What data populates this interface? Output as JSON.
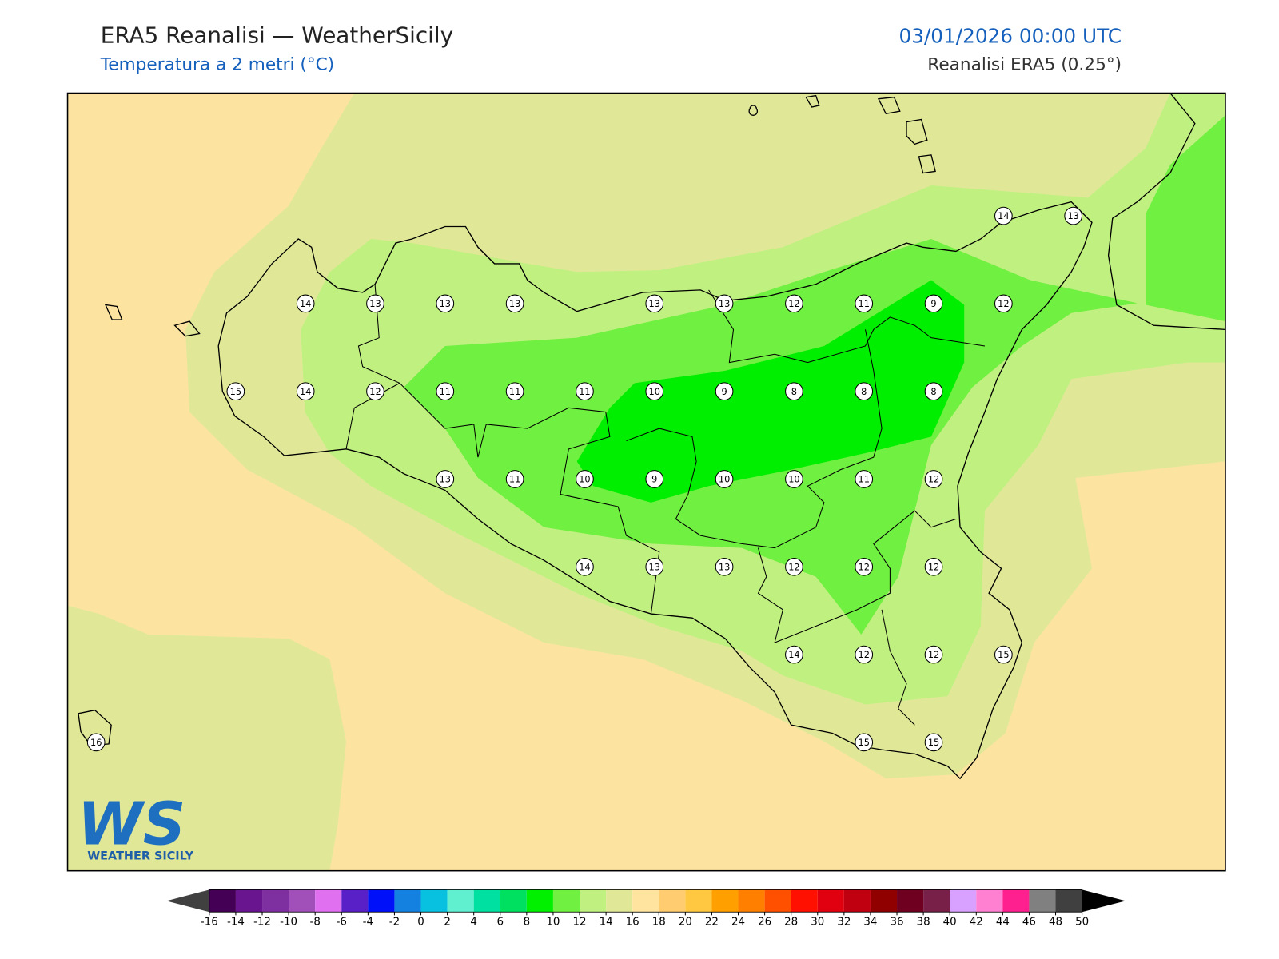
{
  "header": {
    "title": "ERA5 Reanalisi — WeatherSicily",
    "subtitle": "Temperatura a 2 metri (°C)",
    "datetime": "03/01/2026 00:00 UTC",
    "source": "Reanalisi ERA5 (0.25°)"
  },
  "stations": {
    "rows": [
      [
        null,
        null,
        null,
        null,
        null,
        null,
        null,
        null,
        null,
        null,
        null,
        null,
        null,
        14,
        13
      ],
      [
        null,
        null,
        null,
        14,
        13,
        13,
        13,
        null,
        13,
        13,
        12,
        11,
        9,
        12,
        null
      ],
      [
        null,
        null,
        15,
        14,
        12,
        11,
        11,
        11,
        10,
        9,
        8,
        8,
        8,
        null,
        null
      ],
      [
        null,
        null,
        null,
        null,
        null,
        13,
        11,
        10,
        9,
        10,
        10,
        11,
        12,
        null,
        null
      ],
      [
        null,
        null,
        null,
        null,
        null,
        null,
        null,
        14,
        13,
        13,
        12,
        12,
        12,
        null,
        null
      ],
      [
        null,
        null,
        null,
        null,
        null,
        null,
        null,
        null,
        null,
        null,
        14,
        12,
        12,
        15,
        null
      ],
      [
        16,
        null,
        null,
        null,
        null,
        null,
        null,
        null,
        null,
        null,
        null,
        15,
        15,
        null,
        null
      ]
    ]
  },
  "colorbar": {
    "ticks": [
      -16,
      -14,
      -12,
      -10,
      -8,
      -6,
      -4,
      -2,
      0,
      2,
      4,
      6,
      8,
      10,
      12,
      14,
      16,
      18,
      20,
      22,
      24,
      26,
      28,
      30,
      32,
      34,
      36,
      38,
      40,
      42,
      44,
      46,
      48,
      50
    ],
    "colors": [
      "#440055",
      "#6a1590",
      "#7e30a0",
      "#a050b8",
      "#e070f0",
      "#5a20c8",
      "#0010f8",
      "#1480e0",
      "#08c0e0",
      "#60f0d0",
      "#00e0a0",
      "#00e060",
      "#00f000",
      "#70f040",
      "#c0f080",
      "#e0e898",
      "#ffe4a0",
      "#ffcc70",
      "#ffc840",
      "#ffa000",
      "#ff8000",
      "#ff5000",
      "#ff1000",
      "#e00010",
      "#c00010",
      "#900000",
      "#700020",
      "#782048",
      "#d8a0ff",
      "#ff80d0",
      "#ff2090",
      "#808080",
      "#404040"
    ],
    "under_color": "#404040",
    "over_color": "#000000"
  },
  "logo": {
    "mark": "WS",
    "text": "WEATHER SICILY"
  }
}
